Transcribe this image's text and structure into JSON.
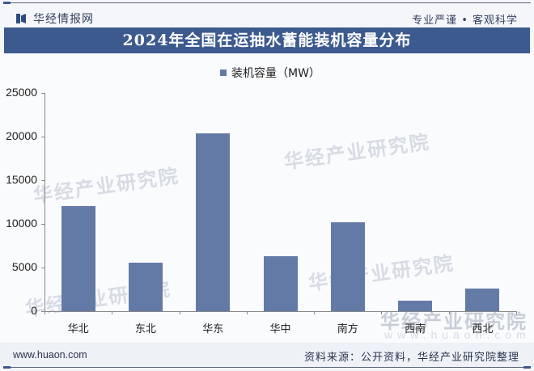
{
  "header": {
    "logo_text": "华经情报网",
    "slogan": "专业严谨 • 客观科学"
  },
  "title": "2024年全国在运抽水蓄能装机容量分布",
  "legend": {
    "label": "装机容量（MW）",
    "color": "#637aa6"
  },
  "footer": {
    "url": "www.huaon.com",
    "source": "资料来源：公开资料，华经产业研究院整理"
  },
  "watermark": {
    "text": "华经产业研究院",
    "url": "www.huaon.com"
  },
  "y_ticks": [
    "25000",
    "20000",
    "15000",
    "10000",
    "5000",
    "0"
  ],
  "chart_data": {
    "type": "bar",
    "title": "2024年全国在运抽水蓄能装机容量分布",
    "categories": [
      "华北",
      "东北",
      "华东",
      "华中",
      "南方",
      "西南",
      "西北"
    ],
    "series": [
      {
        "name": "装机容量（MW）",
        "values": [
          12000,
          5600,
          20400,
          6300,
          10200,
          1200,
          2600
        ]
      }
    ],
    "xlabel": "",
    "ylabel": "",
    "ylim": [
      0,
      25000
    ],
    "yticks": [
      0,
      5000,
      10000,
      15000,
      20000,
      25000
    ],
    "grid": false,
    "legend_position": "top",
    "bar_color": "#637aa6"
  }
}
